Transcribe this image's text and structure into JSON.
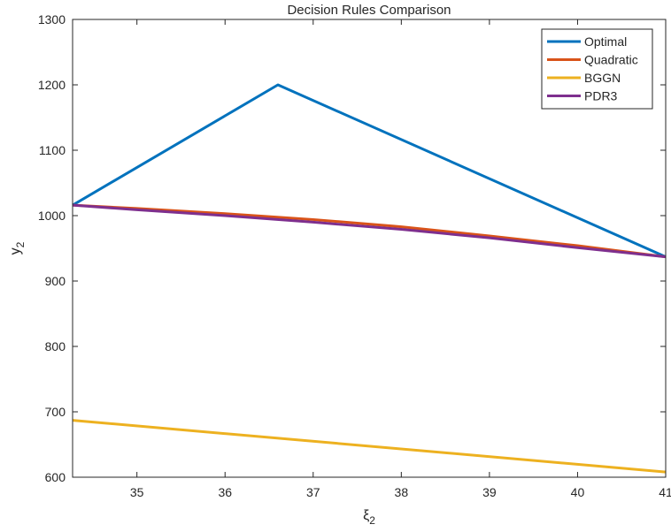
{
  "chart_data": {
    "type": "line",
    "title": "Decision Rules Comparison",
    "xlabel": {
      "base": "ξ",
      "sub": "2"
    },
    "ylabel": {
      "base": "y",
      "sub": "2"
    },
    "xlim": [
      34.27,
      41.0
    ],
    "ylim": [
      600,
      1300
    ],
    "xticks": [
      35,
      36,
      37,
      38,
      39,
      40,
      41
    ],
    "yticks": [
      600,
      700,
      800,
      900,
      1000,
      1100,
      1200,
      1300
    ],
    "grid": false,
    "legend_position": "top-right",
    "series": [
      {
        "name": "Optimal",
        "color": "#0072BD",
        "points": [
          [
            34.27,
            1016
          ],
          [
            36.6,
            1200
          ],
          [
            41.0,
            937
          ]
        ]
      },
      {
        "name": "Quadratic",
        "color": "#D95319",
        "points": [
          [
            34.27,
            1016
          ],
          [
            35.0,
            1011
          ],
          [
            36.0,
            1003
          ],
          [
            37.0,
            994
          ],
          [
            38.0,
            983
          ],
          [
            39.0,
            969
          ],
          [
            40.0,
            954
          ],
          [
            41.0,
            937
          ]
        ]
      },
      {
        "name": "BGGN",
        "color": "#EDB120",
        "points": [
          [
            34.27,
            687
          ],
          [
            41.0,
            608
          ]
        ]
      },
      {
        "name": "PDR3",
        "color": "#7E2F8E",
        "points": [
          [
            34.27,
            1016
          ],
          [
            35.0,
            1009
          ],
          [
            36.0,
            1000
          ],
          [
            37.0,
            990
          ],
          [
            38.0,
            979
          ],
          [
            39.0,
            966
          ],
          [
            40.0,
            951
          ],
          [
            41.0,
            937
          ]
        ]
      }
    ]
  }
}
